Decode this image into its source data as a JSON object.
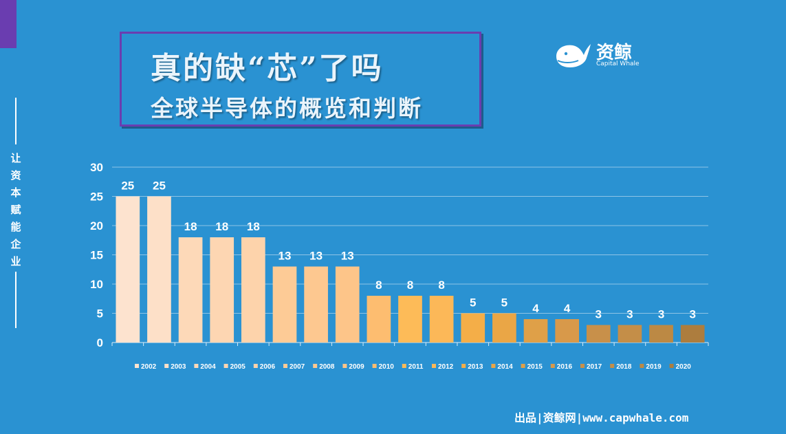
{
  "side_text": "让资本赋能企业",
  "title": {
    "line1": "真的缺“芯”了吗",
    "line2": "全球半导体的概览和判断"
  },
  "logo": {
    "name": "资鲸",
    "sub": "Capital Whale"
  },
  "footer": "出品|资鲸网|www.capwhale.com",
  "colors": {
    "background": "#2a92d2",
    "accent": "#6a3db0",
    "bars": [
      "#fde3cf",
      "#fde0c8",
      "#fdd9b8",
      "#fdd6b2",
      "#fdd3ab",
      "#fdcb96",
      "#fdc890",
      "#fdc589",
      "#fdbd70",
      "#fdbb58",
      "#fcb858",
      "#f4ae48",
      "#eaa646",
      "#dfa048",
      "#d8994a",
      "#c8904a",
      "#c48e48",
      "#bc8944",
      "#ad7d3e"
    ]
  },
  "chart_data": {
    "type": "bar",
    "categories": [
      "2002",
      "2003",
      "2004",
      "2005",
      "2006",
      "2007",
      "2008",
      "2009",
      "2010",
      "2011",
      "2012",
      "2013",
      "2014",
      "2015",
      "2016",
      "2017",
      "2018",
      "2019",
      "2020"
    ],
    "values": [
      25,
      25,
      18,
      18,
      18,
      13,
      13,
      13,
      8,
      8,
      8,
      5,
      5,
      4,
      4,
      3,
      3,
      3,
      3
    ],
    "y_ticks": [
      0,
      5,
      10,
      15,
      20,
      25,
      30
    ],
    "ylim": [
      0,
      30
    ],
    "grid": true,
    "legend_position": "bottom",
    "data_labels": true
  }
}
